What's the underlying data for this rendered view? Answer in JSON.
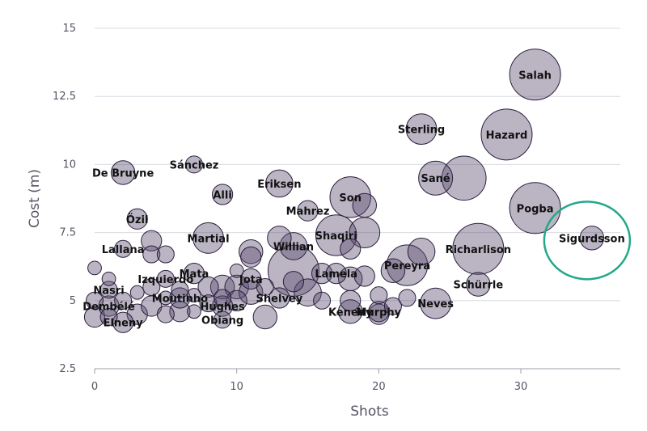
{
  "chart_data": {
    "type": "scatter",
    "xlabel": "Shots",
    "ylabel": "Cost (m)",
    "xlim": [
      0,
      37
    ],
    "ylim": [
      2.5,
      15
    ],
    "x_ticks": [
      0,
      10,
      20,
      30
    ],
    "y_ticks": [
      2.5,
      5,
      7.5,
      10,
      12.5,
      15
    ],
    "y_tick_labels": [
      "2.5",
      "5",
      "7.5",
      "10",
      "12.5",
      "15"
    ],
    "grid": "horizontal",
    "color": "#5a4c70",
    "highlight_color": "#22a88a",
    "highlight": "Sigurdsson",
    "points": [
      {
        "name": "Salah",
        "x": 31,
        "y": 13.3,
        "r": 1.5
      },
      {
        "name": "Sterling",
        "x": 23,
        "y": 11.3,
        "r": 0.9
      },
      {
        "name": "Hazard",
        "x": 29,
        "y": 11.1,
        "r": 1.5
      },
      {
        "name": "De Bruyne",
        "x": 2,
        "y": 9.7,
        "r": 0.7
      },
      {
        "name": "Sánchez",
        "x": 7,
        "y": 10.0,
        "r": 0.5
      },
      {
        "name": "Eriksen",
        "x": 13,
        "y": 9.3,
        "r": 0.8
      },
      {
        "name": "Sané",
        "x": 24,
        "y": 9.5,
        "r": 1.0
      },
      {
        "name": "Alli",
        "x": 9,
        "y": 8.9,
        "r": 0.6
      },
      {
        "name": "Son",
        "x": 18,
        "y": 8.8,
        "r": 1.2
      },
      {
        "name": "Mahrez",
        "x": 15,
        "y": 8.3,
        "r": 0.6
      },
      {
        "name": "Pogba",
        "x": 31,
        "y": 8.4,
        "r": 1.5
      },
      {
        "name": "Özil",
        "x": 3,
        "y": 8.0,
        "r": 0.6
      },
      {
        "name": "Martial",
        "x": 8,
        "y": 7.3,
        "r": 0.9
      },
      {
        "name": "Willian",
        "x": 14,
        "y": 7.0,
        "r": 0.8
      },
      {
        "name": "Shaqiri",
        "x": 17,
        "y": 7.4,
        "r": 1.2
      },
      {
        "name": "Sigurdsson",
        "x": 35,
        "y": 7.3,
        "r": 0.7
      },
      {
        "name": "Lallana",
        "x": 2,
        "y": 6.9,
        "r": 0.5
      },
      {
        "name": "Richarlison",
        "x": 27,
        "y": 6.9,
        "r": 1.5
      },
      {
        "name": "Pereyra",
        "x": 22,
        "y": 6.3,
        "r": 1.2
      },
      {
        "name": "Lamela",
        "x": 17,
        "y": 6.0,
        "r": 0.6
      },
      {
        "name": "Mata",
        "x": 7,
        "y": 6.0,
        "r": 0.6
      },
      {
        "name": "Jota",
        "x": 11,
        "y": 5.8,
        "r": 0.6
      },
      {
        "name": "Izquierdo",
        "x": 5,
        "y": 5.8,
        "r": 0.5
      },
      {
        "name": "Schürrle",
        "x": 27,
        "y": 5.6,
        "r": 0.7
      },
      {
        "name": "Nasri",
        "x": 1,
        "y": 5.4,
        "r": 0.5
      },
      {
        "name": "Moutinho",
        "x": 6,
        "y": 5.1,
        "r": 0.6
      },
      {
        "name": "Shelvey",
        "x": 13,
        "y": 5.1,
        "r": 0.6
      },
      {
        "name": "Dembélé",
        "x": 1,
        "y": 4.8,
        "r": 0.6
      },
      {
        "name": "Hughes",
        "x": 9,
        "y": 4.8,
        "r": 0.6
      },
      {
        "name": "Kenedy",
        "x": 18,
        "y": 4.6,
        "r": 0.7
      },
      {
        "name": "Murphy",
        "x": 20,
        "y": 4.6,
        "r": 0.6
      },
      {
        "name": "Neves",
        "x": 24,
        "y": 4.9,
        "r": 0.9
      },
      {
        "name": "Obiang",
        "x": 9,
        "y": 4.3,
        "r": 0.5
      },
      {
        "name": "Elneny",
        "x": 2,
        "y": 4.2,
        "r": 0.6
      }
    ],
    "unlabeled_points": [
      {
        "x": 0,
        "y": 6.2,
        "r": 0.4
      },
      {
        "x": 0,
        "y": 5.0,
        "r": 0.5
      },
      {
        "x": 0,
        "y": 4.4,
        "r": 0.6
      },
      {
        "x": 1,
        "y": 4.4,
        "r": 0.5
      },
      {
        "x": 1,
        "y": 5.8,
        "r": 0.4
      },
      {
        "x": 2,
        "y": 5.0,
        "r": 0.5
      },
      {
        "x": 3,
        "y": 4.5,
        "r": 0.6
      },
      {
        "x": 3,
        "y": 5.3,
        "r": 0.4
      },
      {
        "x": 4,
        "y": 4.8,
        "r": 0.6
      },
      {
        "x": 4,
        "y": 7.2,
        "r": 0.6
      },
      {
        "x": 4,
        "y": 6.7,
        "r": 0.5
      },
      {
        "x": 4,
        "y": 5.5,
        "r": 0.5
      },
      {
        "x": 5,
        "y": 6.7,
        "r": 0.5
      },
      {
        "x": 5,
        "y": 4.5,
        "r": 0.5
      },
      {
        "x": 5,
        "y": 5.1,
        "r": 0.4
      },
      {
        "x": 6,
        "y": 4.6,
        "r": 0.6
      },
      {
        "x": 6,
        "y": 5.4,
        "r": 0.5
      },
      {
        "x": 7,
        "y": 4.6,
        "r": 0.4
      },
      {
        "x": 7,
        "y": 5.2,
        "r": 0.4
      },
      {
        "x": 8,
        "y": 5.5,
        "r": 0.6
      },
      {
        "x": 8,
        "y": 4.9,
        "r": 0.5
      },
      {
        "x": 9,
        "y": 5.5,
        "r": 0.7
      },
      {
        "x": 9,
        "y": 5.1,
        "r": 0.5
      },
      {
        "x": 10,
        "y": 5.5,
        "r": 0.7
      },
      {
        "x": 10,
        "y": 5.0,
        "r": 0.6
      },
      {
        "x": 10,
        "y": 6.1,
        "r": 0.4
      },
      {
        "x": 11,
        "y": 6.8,
        "r": 0.7
      },
      {
        "x": 11,
        "y": 6.6,
        "r": 0.6
      },
      {
        "x": 11,
        "y": 5.3,
        "r": 0.7
      },
      {
        "x": 12,
        "y": 4.4,
        "r": 0.7
      },
      {
        "x": 12,
        "y": 5.5,
        "r": 0.5
      },
      {
        "x": 13,
        "y": 7.3,
        "r": 0.7
      },
      {
        "x": 14,
        "y": 6.1,
        "r": 1.5
      },
      {
        "x": 14,
        "y": 5.7,
        "r": 0.6
      },
      {
        "x": 15,
        "y": 5.3,
        "r": 0.8
      },
      {
        "x": 16,
        "y": 5.0,
        "r": 0.5
      },
      {
        "x": 16,
        "y": 6.0,
        "r": 0.6
      },
      {
        "x": 18,
        "y": 6.9,
        "r": 0.6
      },
      {
        "x": 18,
        "y": 5.8,
        "r": 0.7
      },
      {
        "x": 18,
        "y": 5.0,
        "r": 0.6
      },
      {
        "x": 19,
        "y": 8.5,
        "r": 0.7
      },
      {
        "x": 19,
        "y": 7.5,
        "r": 0.9
      },
      {
        "x": 19,
        "y": 5.9,
        "r": 0.6
      },
      {
        "x": 20,
        "y": 5.2,
        "r": 0.5
      },
      {
        "x": 20,
        "y": 4.5,
        "r": 0.6
      },
      {
        "x": 21,
        "y": 6.1,
        "r": 0.7
      },
      {
        "x": 21,
        "y": 4.8,
        "r": 0.5
      },
      {
        "x": 22,
        "y": 5.1,
        "r": 0.5
      },
      {
        "x": 23,
        "y": 6.8,
        "r": 0.8
      },
      {
        "x": 26,
        "y": 9.5,
        "r": 1.3
      }
    ]
  }
}
